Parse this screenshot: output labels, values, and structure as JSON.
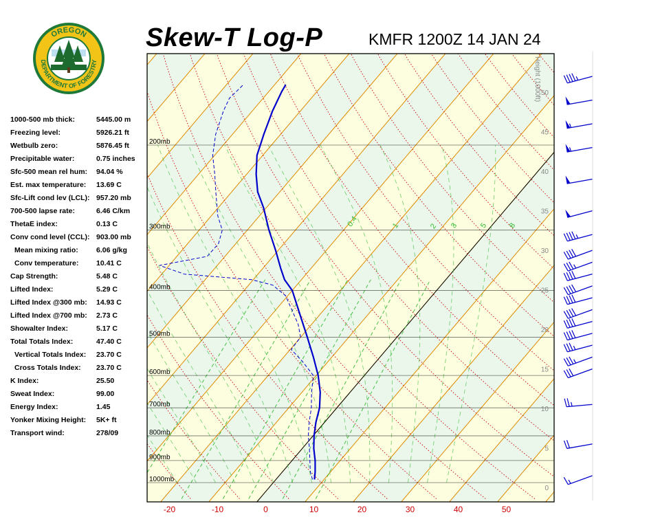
{
  "title": "Skew-T Log-P",
  "station_time": "KMFR 1200Z 14 JAN 24",
  "logo": {
    "text_top": "OREGON",
    "text_bottom": "DEPARTMENT OF FORESTRY",
    "colors": {
      "ring": "#1f7a3a",
      "outer": "#f2c418",
      "tree": "#1d6b2f"
    }
  },
  "indices": [
    {
      "label": "1000-500 mb thick:",
      "value": "5445.00 m",
      "indent": false
    },
    {
      "label": "Freezing level:",
      "value": "5926.21 ft",
      "indent": false
    },
    {
      "label": "Wetbulb zero:",
      "value": "5876.45 ft",
      "indent": false
    },
    {
      "label": "Precipitable water:",
      "value": "0.75 inches",
      "indent": false
    },
    {
      "label": "Sfc-500 mean rel hum:",
      "value": "94.04 %",
      "indent": false
    },
    {
      "label": "Est. max temperature:",
      "value": "13.69 C",
      "indent": false
    },
    {
      "label": "Sfc-Lift cond lev (LCL):",
      "value": "957.20 mb",
      "indent": false
    },
    {
      "label": "700-500 lapse rate:",
      "value": "6.46 C/km",
      "indent": false
    },
    {
      "label": "ThetaE index:",
      "value": "0.13 C",
      "indent": false
    },
    {
      "label": "Conv cond level (CCL):",
      "value": "903.00 mb",
      "indent": false
    },
    {
      "label": "Mean mixing ratio:",
      "value": "6.06 g/kg",
      "indent": true
    },
    {
      "label": "Conv temperature:",
      "value": "10.41 C",
      "indent": true
    },
    {
      "label": "Cap Strength:",
      "value": "5.48 C",
      "indent": false
    },
    {
      "label": "Lifted Index:",
      "value": "5.29 C",
      "indent": false
    },
    {
      "label": "Lifted Index @300 mb:",
      "value": "14.93 C",
      "indent": false
    },
    {
      "label": "Lifted Index @700 mb:",
      "value": "2.73 C",
      "indent": false
    },
    {
      "label": "Showalter Index:",
      "value": "5.17 C",
      "indent": false
    },
    {
      "label": "Total Totals Index:",
      "value": "47.40 C",
      "indent": false
    },
    {
      "label": "Vertical Totals Index:",
      "value": "23.70 C",
      "indent": true
    },
    {
      "label": "Cross Totals Index:",
      "value": "23.70 C",
      "indent": true
    },
    {
      "label": "K Index:",
      "value": "25.50",
      "indent": false
    },
    {
      "label": "Sweat Index:",
      "value": "99.00",
      "indent": false
    },
    {
      "label": "Energy Index:",
      "value": "1.45",
      "indent": false
    },
    {
      "label": "Yonker Mixing Height:",
      "value": "5K+ ft",
      "indent": false
    },
    {
      "label": "Transport wind:",
      "value": "278/09",
      "indent": false
    }
  ],
  "chart_data": {
    "type": "skew-t",
    "colors": {
      "temperature": "#0000cc",
      "dewpoint": "#0000cc",
      "isotherm": "#e08a00",
      "dry_adiabat": "#cc0000",
      "moist_adiabat": "#33bb33",
      "mixing_ratio": "#33bb33",
      "isobar": "#000000",
      "band_yellow": "#fdfde0",
      "band_green": "#eaf7ea",
      "wind_barb": "#0000cc"
    },
    "pressure_labels": [
      "200mb",
      "300mb",
      "400mb",
      "500mb",
      "600mb",
      "700mb",
      "800mb",
      "900mb",
      "1000mb"
    ],
    "pressure_levels": [
      200,
      300,
      400,
      500,
      600,
      700,
      800,
      900,
      1000
    ],
    "x_ticks": [
      "-20",
      "-10",
      "0",
      "10",
      "20",
      "30",
      "40",
      "50"
    ],
    "x_tick_values": [
      -20,
      -10,
      0,
      10,
      20,
      30,
      40,
      50
    ],
    "height_axis_label": "Height (1000ft)",
    "height_ticks": [
      "0",
      "5",
      "10",
      "15",
      "20",
      "25",
      "30",
      "35",
      "40",
      "45",
      "50"
    ],
    "height_tick_values": [
      0,
      5,
      10,
      15,
      20,
      25,
      30,
      35,
      40,
      45,
      50
    ],
    "mixing_ratio_labels": [
      "0.4",
      "1",
      "2",
      "3",
      "5",
      "8"
    ],
    "mixing_ratio_values": [
      0.4,
      1,
      2,
      3,
      5,
      8
    ],
    "temperature_profile": [
      {
        "p": 985,
        "t": 8.0
      },
      {
        "p": 950,
        "t": 6.8
      },
      {
        "p": 900,
        "t": 4.8
      },
      {
        "p": 850,
        "t": 2.4
      },
      {
        "p": 800,
        "t": 0.2
      },
      {
        "p": 750,
        "t": -1.8
      },
      {
        "p": 700,
        "t": -3.6
      },
      {
        "p": 650,
        "t": -6.2
      },
      {
        "p": 600,
        "t": -9.6
      },
      {
        "p": 550,
        "t": -13.8
      },
      {
        "p": 500,
        "t": -18.6
      },
      {
        "p": 450,
        "t": -24.0
      },
      {
        "p": 400,
        "t": -30.0
      },
      {
        "p": 380,
        "t": -33.5
      },
      {
        "p": 360,
        "t": -36.3
      },
      {
        "p": 330,
        "t": -40.6
      },
      {
        "p": 300,
        "t": -45.5
      },
      {
        "p": 270,
        "t": -50.5
      },
      {
        "p": 250,
        "t": -54.6
      },
      {
        "p": 230,
        "t": -58.0
      },
      {
        "p": 210,
        "t": -61.2
      },
      {
        "p": 190,
        "t": -63.5
      },
      {
        "p": 170,
        "t": -65.8
      },
      {
        "p": 155,
        "t": -67.3
      },
      {
        "p": 150,
        "t": -67.7
      }
    ],
    "dewpoint_profile": [
      {
        "p": 985,
        "t": 7.6
      },
      {
        "p": 950,
        "t": 5.8
      },
      {
        "p": 900,
        "t": 3.7
      },
      {
        "p": 850,
        "t": 1.5
      },
      {
        "p": 800,
        "t": -1.0
      },
      {
        "p": 750,
        "t": -3.2
      },
      {
        "p": 700,
        "t": -5.3
      },
      {
        "p": 650,
        "t": -8.0
      },
      {
        "p": 600,
        "t": -10.6
      },
      {
        "p": 560,
        "t": -15.5
      },
      {
        "p": 530,
        "t": -19.8
      },
      {
        "p": 500,
        "t": -20.0
      },
      {
        "p": 470,
        "t": -22.8
      },
      {
        "p": 440,
        "t": -26.5
      },
      {
        "p": 410,
        "t": -30.5
      },
      {
        "p": 390,
        "t": -35.0
      },
      {
        "p": 380,
        "t": -40.3
      },
      {
        "p": 370,
        "t": -55.3
      },
      {
        "p": 355,
        "t": -62.0
      },
      {
        "p": 340,
        "t": -53.7
      },
      {
        "p": 320,
        "t": -53.6
      },
      {
        "p": 300,
        "t": -55.2
      },
      {
        "p": 280,
        "t": -58.7
      },
      {
        "p": 250,
        "t": -63.3
      },
      {
        "p": 230,
        "t": -66.6
      },
      {
        "p": 210,
        "t": -70.4
      },
      {
        "p": 190,
        "t": -73.5
      },
      {
        "p": 170,
        "t": -76.0
      },
      {
        "p": 160,
        "t": -77.0
      },
      {
        "p": 150,
        "t": -76.5
      }
    ],
    "wind_barbs": [
      {
        "h": 1.5,
        "dir": 250,
        "spd": 15
      },
      {
        "h": 5.5,
        "dir": 260,
        "spd": 20
      },
      {
        "h": 10.5,
        "dir": 265,
        "spd": 25
      },
      {
        "h": 15,
        "dir": 250,
        "spd": 30
      },
      {
        "h": 16.5,
        "dir": 250,
        "spd": 35
      },
      {
        "h": 18,
        "dir": 255,
        "spd": 35
      },
      {
        "h": 19.5,
        "dir": 255,
        "spd": 40
      },
      {
        "h": 21,
        "dir": 255,
        "spd": 40
      },
      {
        "h": 22.5,
        "dir": 250,
        "spd": 40
      },
      {
        "h": 24,
        "dir": 255,
        "spd": 40
      },
      {
        "h": 25.5,
        "dir": 250,
        "spd": 40
      },
      {
        "h": 27,
        "dir": 255,
        "spd": 40
      },
      {
        "h": 28.5,
        "dir": 250,
        "spd": 35
      },
      {
        "h": 30,
        "dir": 250,
        "spd": 40
      },
      {
        "h": 32,
        "dir": 255,
        "spd": 45
      },
      {
        "h": 35,
        "dir": 255,
        "spd": 50
      },
      {
        "h": 39,
        "dir": 260,
        "spd": 50
      },
      {
        "h": 43,
        "dir": 260,
        "spd": 55
      },
      {
        "h": 46,
        "dir": 260,
        "spd": 55
      },
      {
        "h": 49,
        "dir": 260,
        "spd": 50
      },
      {
        "h": 52,
        "dir": 255,
        "spd": 45
      }
    ]
  }
}
